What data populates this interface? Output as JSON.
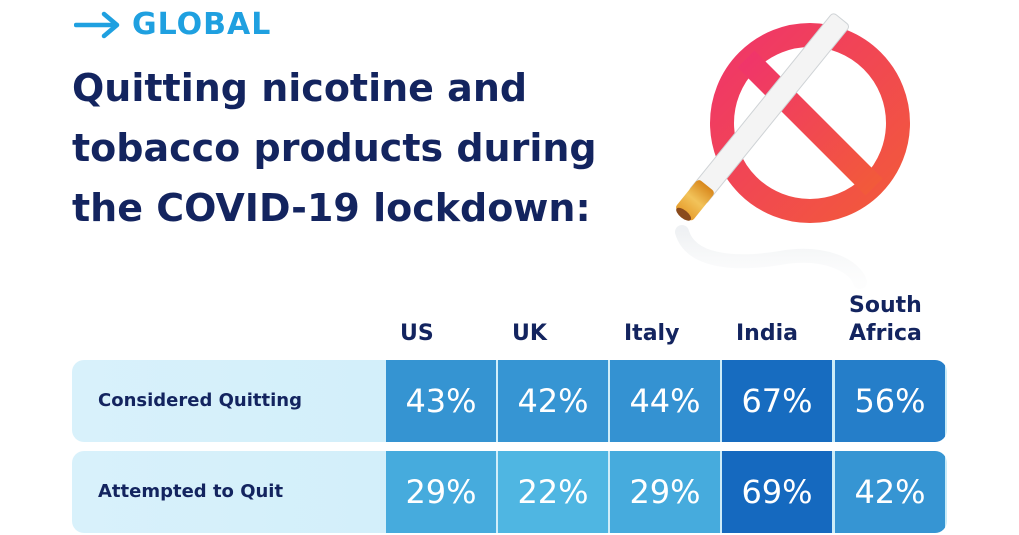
{
  "header": {
    "kicker": "GLOBAL"
  },
  "title_lines": [
    "Quitting nicotine and",
    "tobacco products during",
    "the COVID-19 lockdown:"
  ],
  "icons": {
    "arrow": "arrow-right-icon",
    "illustration": "no-smoking-icon"
  },
  "colors": {
    "title": "#13245f",
    "accent": "#1fa0e0",
    "prohibition_sign": "#f0355c",
    "cell_low": "#4fb6e2",
    "cell_high": "#1569bf"
  },
  "chart_data": {
    "type": "table",
    "columns": [
      "US",
      "UK",
      "Italy",
      "India",
      "South Africa"
    ],
    "rows": [
      {
        "label": "Considered Quitting",
        "values": [
          "43%",
          "42%",
          "44%",
          "67%",
          "56%"
        ]
      },
      {
        "label": "Attempted to Quit",
        "values": [
          "29%",
          "22%",
          "29%",
          "69%",
          "42%"
        ]
      }
    ]
  }
}
